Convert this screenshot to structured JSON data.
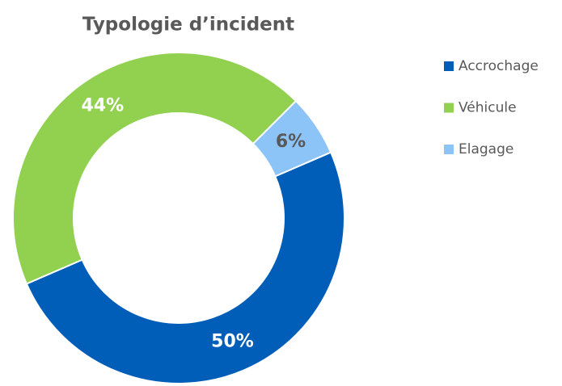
{
  "chart_data": {
    "type": "donut",
    "title": "Typologie d’incident",
    "categories": [
      "Accrochage",
      "Véhicule",
      "Elagage"
    ],
    "values": [
      50,
      44,
      6
    ],
    "value_labels": [
      "50%",
      "44%",
      "6%"
    ],
    "colors": [
      "#005EB8",
      "#92D050",
      "#8CC4F8"
    ],
    "label_colors": [
      "#ffffff",
      "#ffffff",
      "#595959"
    ],
    "legend": "right"
  }
}
